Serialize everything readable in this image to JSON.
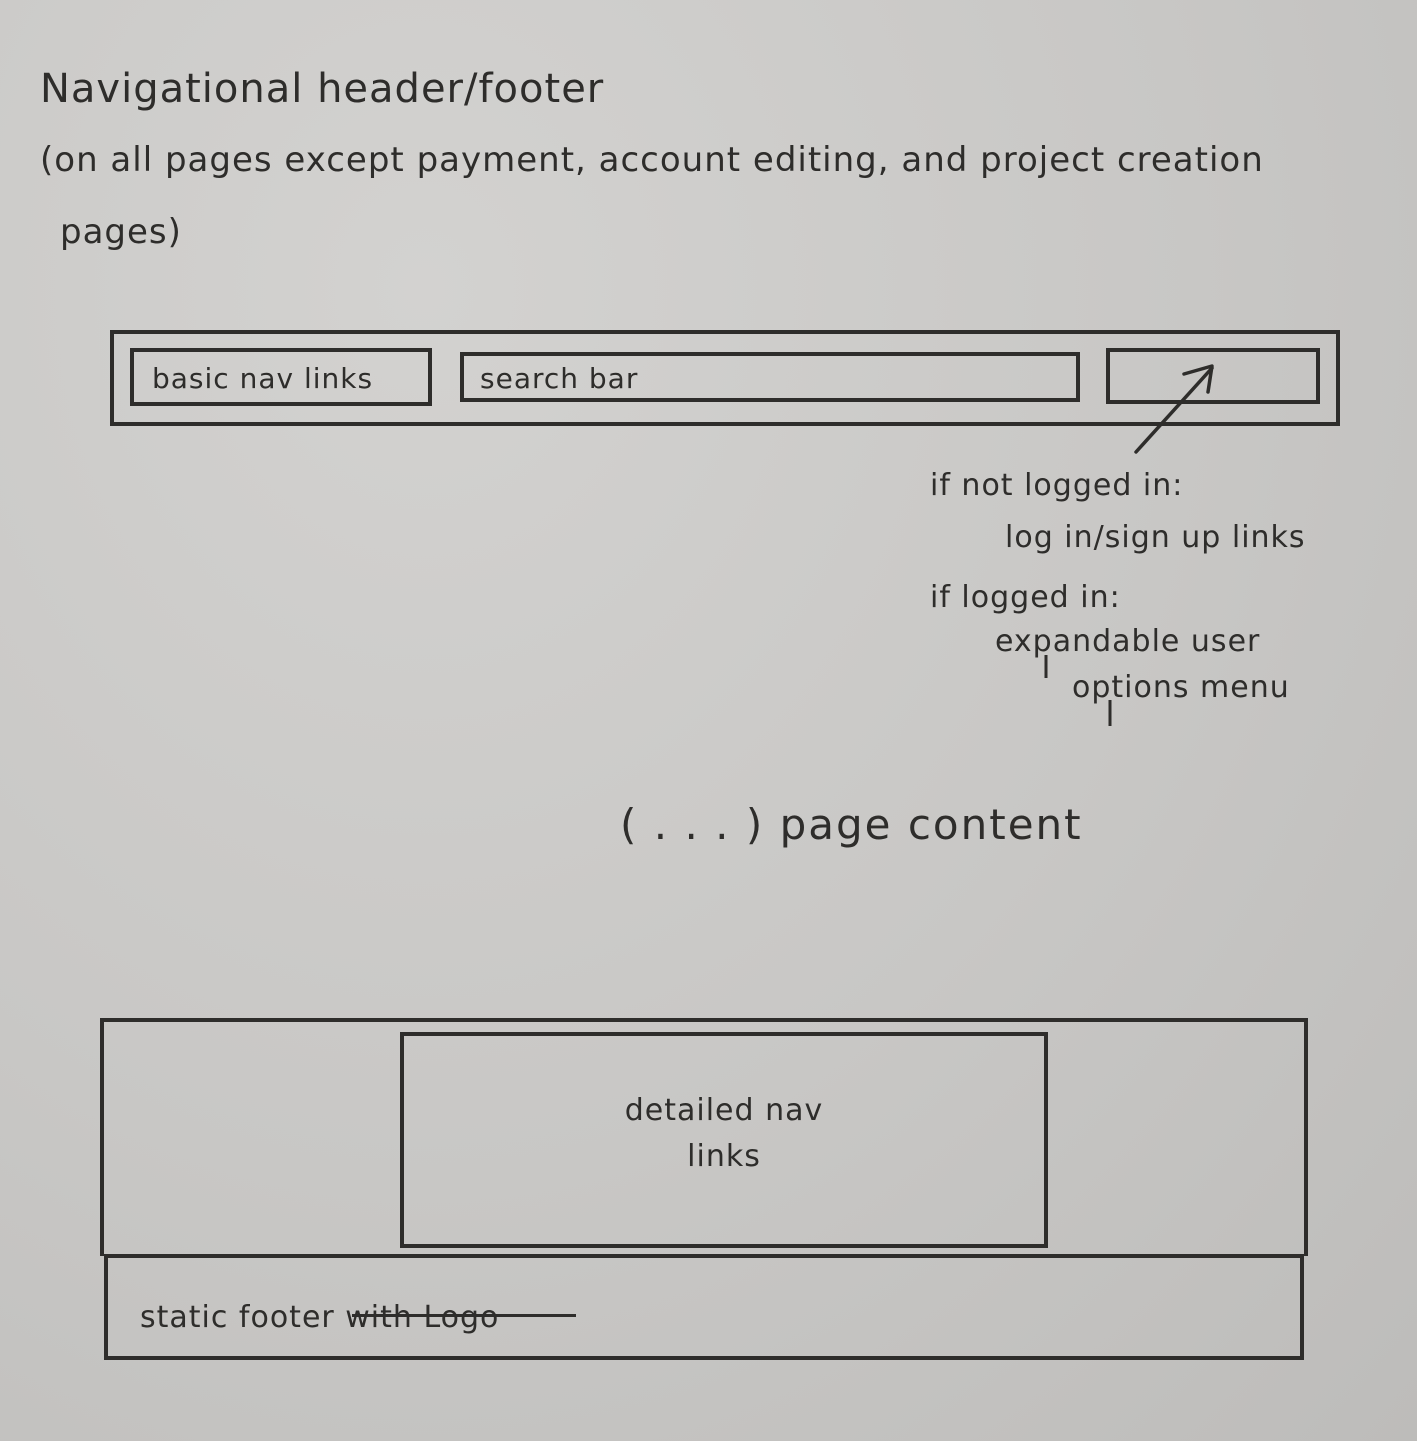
{
  "title": {
    "line1": "Navigational header/footer",
    "line2": "(on all pages except payment, account editing, and project creation",
    "line3": "pages)"
  },
  "header": {
    "nav_links_label": "basic nav links",
    "search_label": "search bar"
  },
  "auth_note": {
    "line1": "if not logged in:",
    "line2": "log in/sign up links",
    "line3": "if logged in:",
    "line4": "expandable user",
    "line5": "options menu"
  },
  "page_content": "( . . . ) page content",
  "footer": {
    "detailed_line1": "detailed nav",
    "detailed_line2": "links",
    "static_label": "static footer with Logo"
  }
}
